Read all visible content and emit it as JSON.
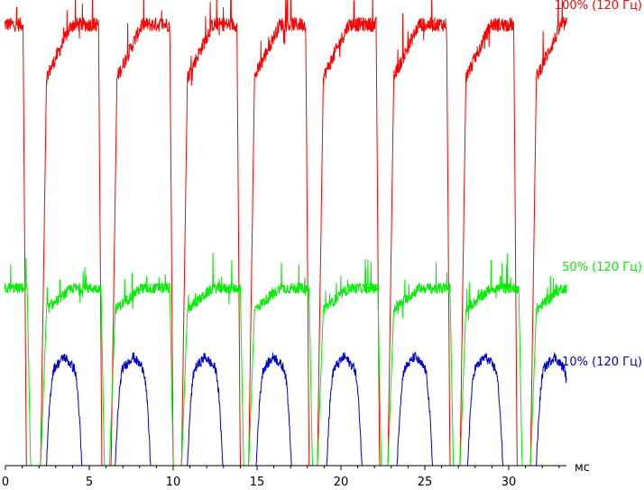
{
  "chart_data": {
    "type": "line",
    "title": "",
    "xlabel": "мс",
    "ylabel": "",
    "xlim": [
      0,
      33.5
    ],
    "ylim": [
      0,
      100
    ],
    "x_ticks": [
      0,
      5,
      10,
      15,
      20,
      25,
      30
    ],
    "x_tick_labels": [
      "0",
      "5",
      "10",
      "15",
      "20",
      "25",
      "30"
    ],
    "grid": false,
    "legend_placement": "right, beside each series",
    "period_ms": 8.333,
    "series": [
      {
        "name": "100% (120 Гц)",
        "color": "#ff0000",
        "high_level": 97,
        "low_level": 0,
        "off_windows_ms": [
          [
            1.25,
            2.1
          ],
          [
            5.75,
            6.3
          ],
          [
            10.0,
            10.5
          ],
          [
            14.0,
            14.5
          ],
          [
            18.1,
            18.6
          ],
          [
            22.3,
            22.8
          ],
          [
            26.5,
            27.1
          ],
          [
            30.5,
            31.3
          ]
        ]
      },
      {
        "name": "50% (120 Гц)",
        "color": "#00ee00",
        "high_level": 39,
        "low_level": 0,
        "off_windows_ms": [
          [
            1.5,
            2.1
          ],
          [
            5.9,
            6.2
          ],
          [
            10.0,
            10.5
          ],
          [
            14.2,
            14.5
          ],
          [
            18.3,
            18.6
          ],
          [
            22.4,
            22.8
          ],
          [
            26.7,
            27.1
          ],
          [
            30.8,
            31.3
          ]
        ]
      },
      {
        "name": "10% (120 Гц)",
        "color": "#0000cc",
        "high_level": 24,
        "low_level": 0,
        "peak_centers_ms": [
          3.5,
          7.6,
          11.9,
          16.0,
          20.2,
          24.4,
          28.6,
          32.7
        ]
      }
    ]
  }
}
